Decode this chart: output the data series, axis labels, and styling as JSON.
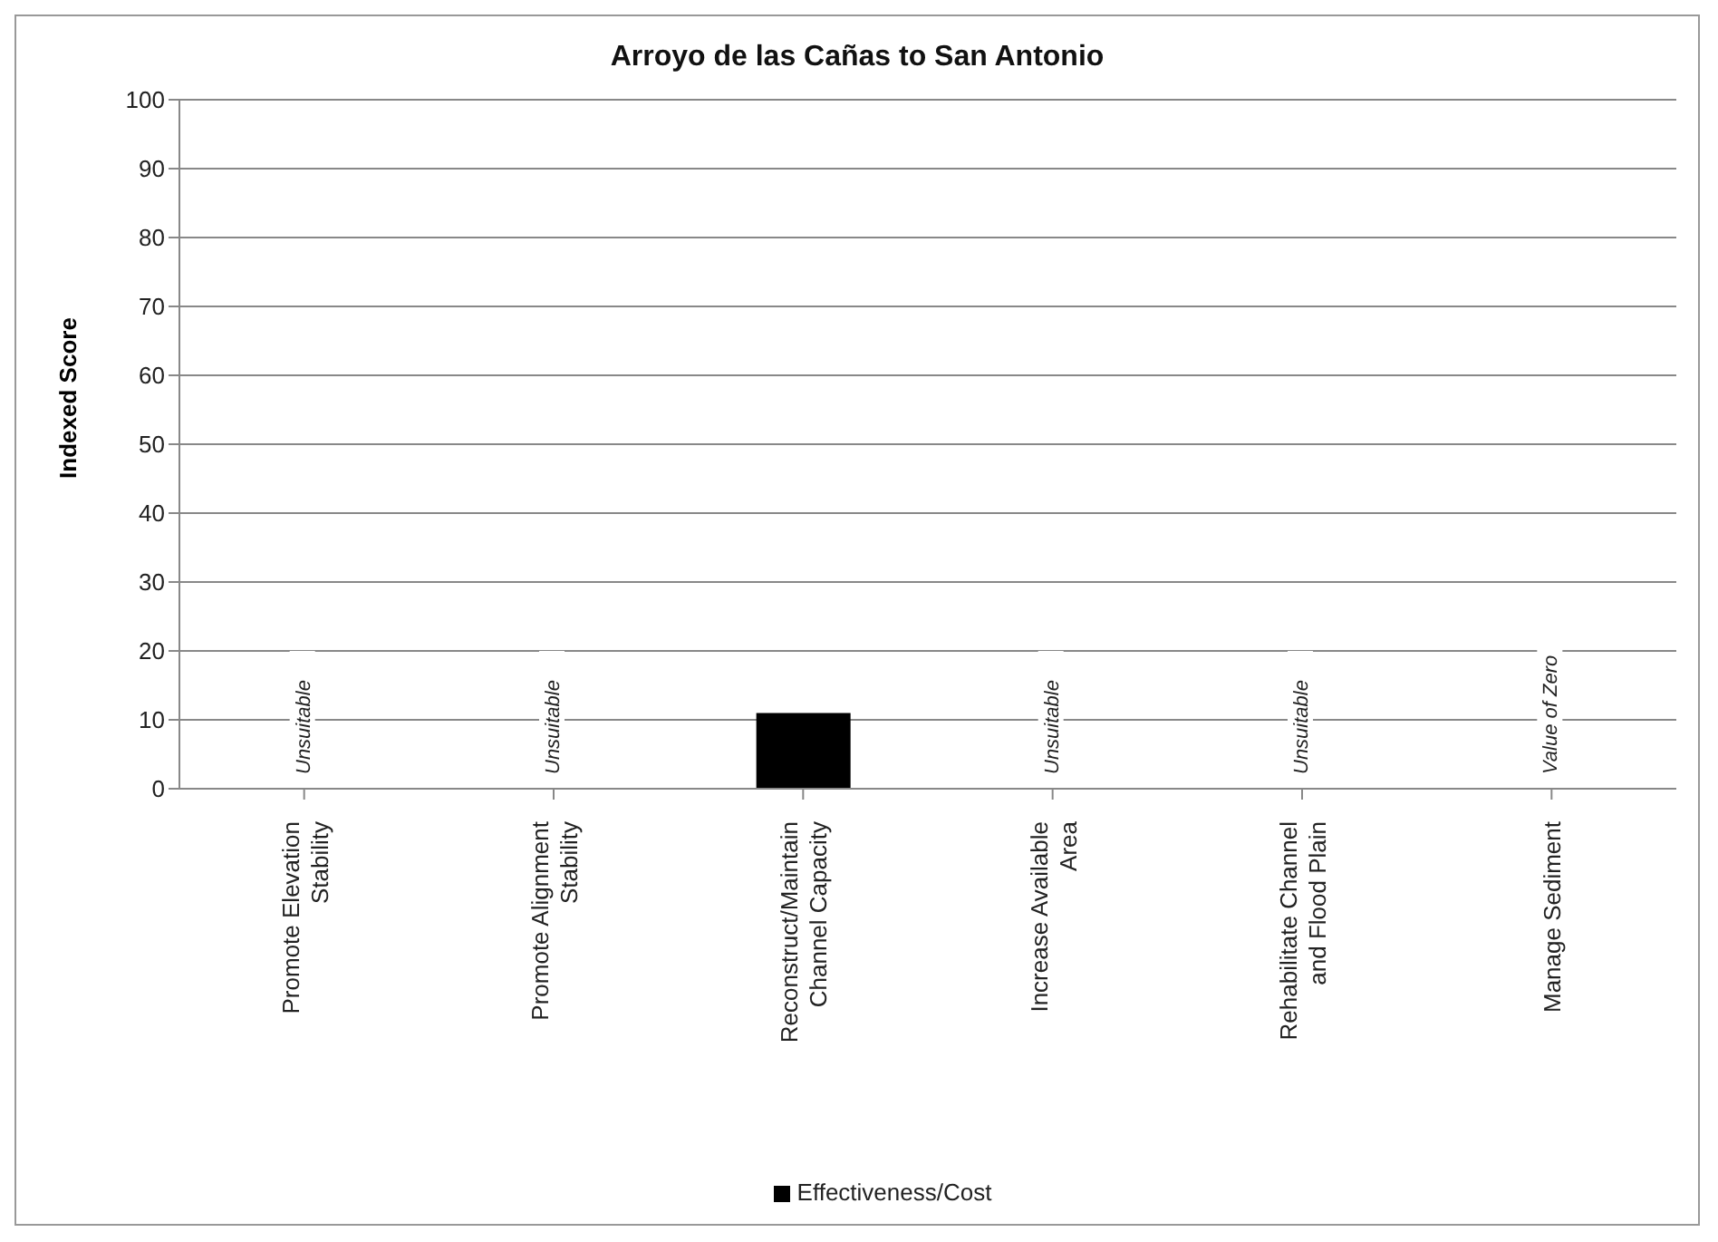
{
  "chart_data": {
    "type": "bar",
    "title": "Arroyo de las Cañas to San Antonio",
    "ylabel": "Indexed Score",
    "categories": [
      "Promote Elevation Stability",
      "Promote Alignment Stability",
      "Reconstruct/Maintain Channel Capacity",
      "Increase Available Area",
      "Rehabilitate Channel and Flood Plain",
      "Manage Sediment"
    ],
    "series": [
      {
        "name": "Effectiveness/Cost",
        "color": "#000000",
        "values": [
          null,
          null,
          11,
          null,
          null,
          0
        ]
      }
    ],
    "ylim": [
      0,
      100
    ],
    "yticks": [
      0,
      10,
      20,
      30,
      40,
      50,
      60,
      70,
      80,
      90,
      100
    ],
    "grid": "y",
    "legend": "bottom",
    "annotations": [
      "Unsuitable",
      "Unsuitable",
      "Unsuitable",
      "Unsuitable",
      "Value of Zero"
    ]
  }
}
